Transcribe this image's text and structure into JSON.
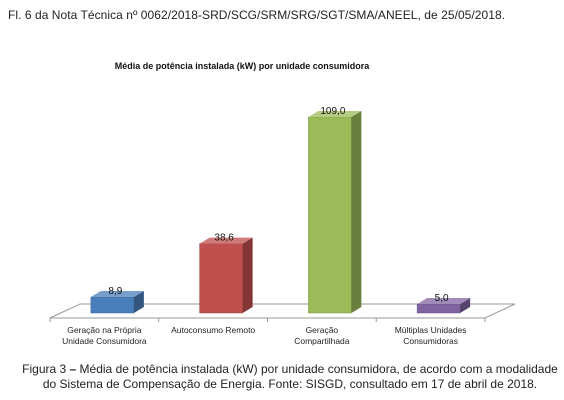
{
  "header": {
    "text": "Fl. 6 da Nota Técnica nº 0062/2018-SRD/SCG/SRM/SRG/SGT/SMA/ANEEL, de 25/05/2018."
  },
  "chart_data": {
    "type": "bar",
    "title": "Média de potência instalada (kW) por unidade consumidora",
    "categories": [
      [
        "Geração na Própria",
        "Unidade Consumidora"
      ],
      [
        "Autoconsumo Remoto"
      ],
      [
        "Geração",
        "Compartilhada"
      ],
      [
        "Múltiplas Unidades",
        "Consumidoras"
      ]
    ],
    "values": [
      8.9,
      38.6,
      109.0,
      5.0
    ],
    "value_labels": [
      "8,9",
      "38,6",
      "109,0",
      "5,0"
    ],
    "colors": [
      "#4A7EBB",
      "#C0504D",
      "#9BBB59",
      "#8064A2"
    ],
    "style": "3d-columns",
    "grid": false,
    "legend": "none"
  },
  "caption": {
    "label": "Figura 3",
    "dash": " – ",
    "text": "Média de potência instalada (kW) por unidade consumidora, de acordo com a modalidade do Sistema de Compensação de Energia. Fonte: SISGD, consultado em 17 de abril de 2018."
  }
}
